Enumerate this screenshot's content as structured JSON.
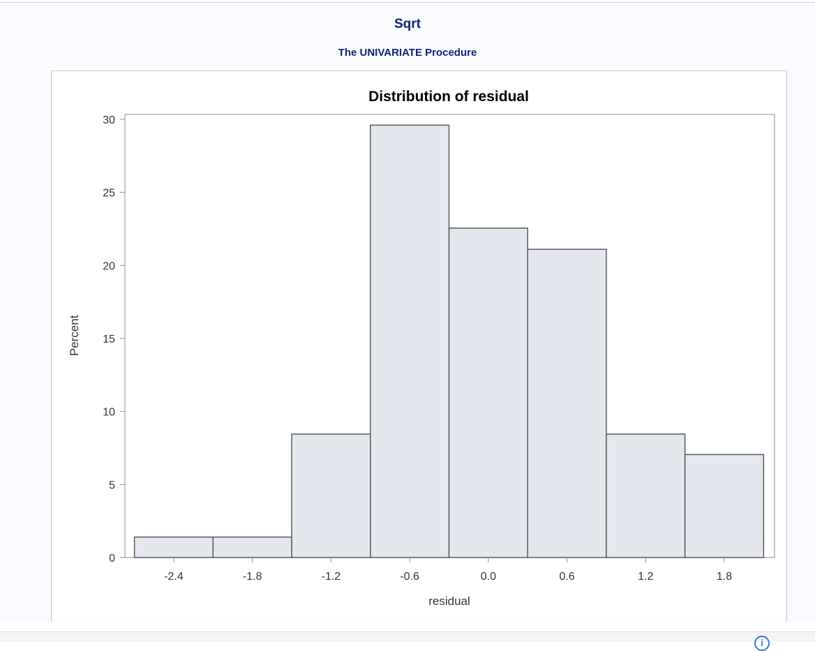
{
  "header": {
    "title": "Sqrt",
    "subtitle": "The UNIVARIATE Procedure"
  },
  "chart_data": {
    "type": "bar",
    "title": "Distribution of residual",
    "xlabel": "residual",
    "ylabel": "Percent",
    "categories": [
      "-2.4",
      "-1.8",
      "-1.2",
      "-0.6",
      "0.0",
      "0.6",
      "1.2",
      "1.8"
    ],
    "bin_centers": [
      -2.4,
      -1.8,
      -1.2,
      -0.6,
      0.0,
      0.6,
      1.2,
      1.8
    ],
    "bin_width": 0.6,
    "values": [
      1.4,
      1.4,
      8.45,
      29.6,
      22.55,
      21.1,
      8.45,
      7.05
    ],
    "ylim": [
      0,
      30
    ],
    "yticks": [
      0,
      5,
      10,
      15,
      20,
      25,
      30
    ],
    "xticks": [
      -2.4,
      -1.8,
      -1.2,
      -0.6,
      0.0,
      0.6,
      1.2,
      1.8
    ],
    "xtick_labels": [
      "-2.4",
      "-1.8",
      "-1.2",
      "-0.6",
      "0.0",
      "0.6",
      "1.2",
      "1.8"
    ],
    "bar_fill": "#e4e8ee",
    "bar_stroke": "#5a5a5a",
    "grid": false
  },
  "colors": {
    "title": "#112277",
    "axis": "#8e8e8e",
    "text": "#333333"
  },
  "icons": {
    "info": "info-icon"
  }
}
